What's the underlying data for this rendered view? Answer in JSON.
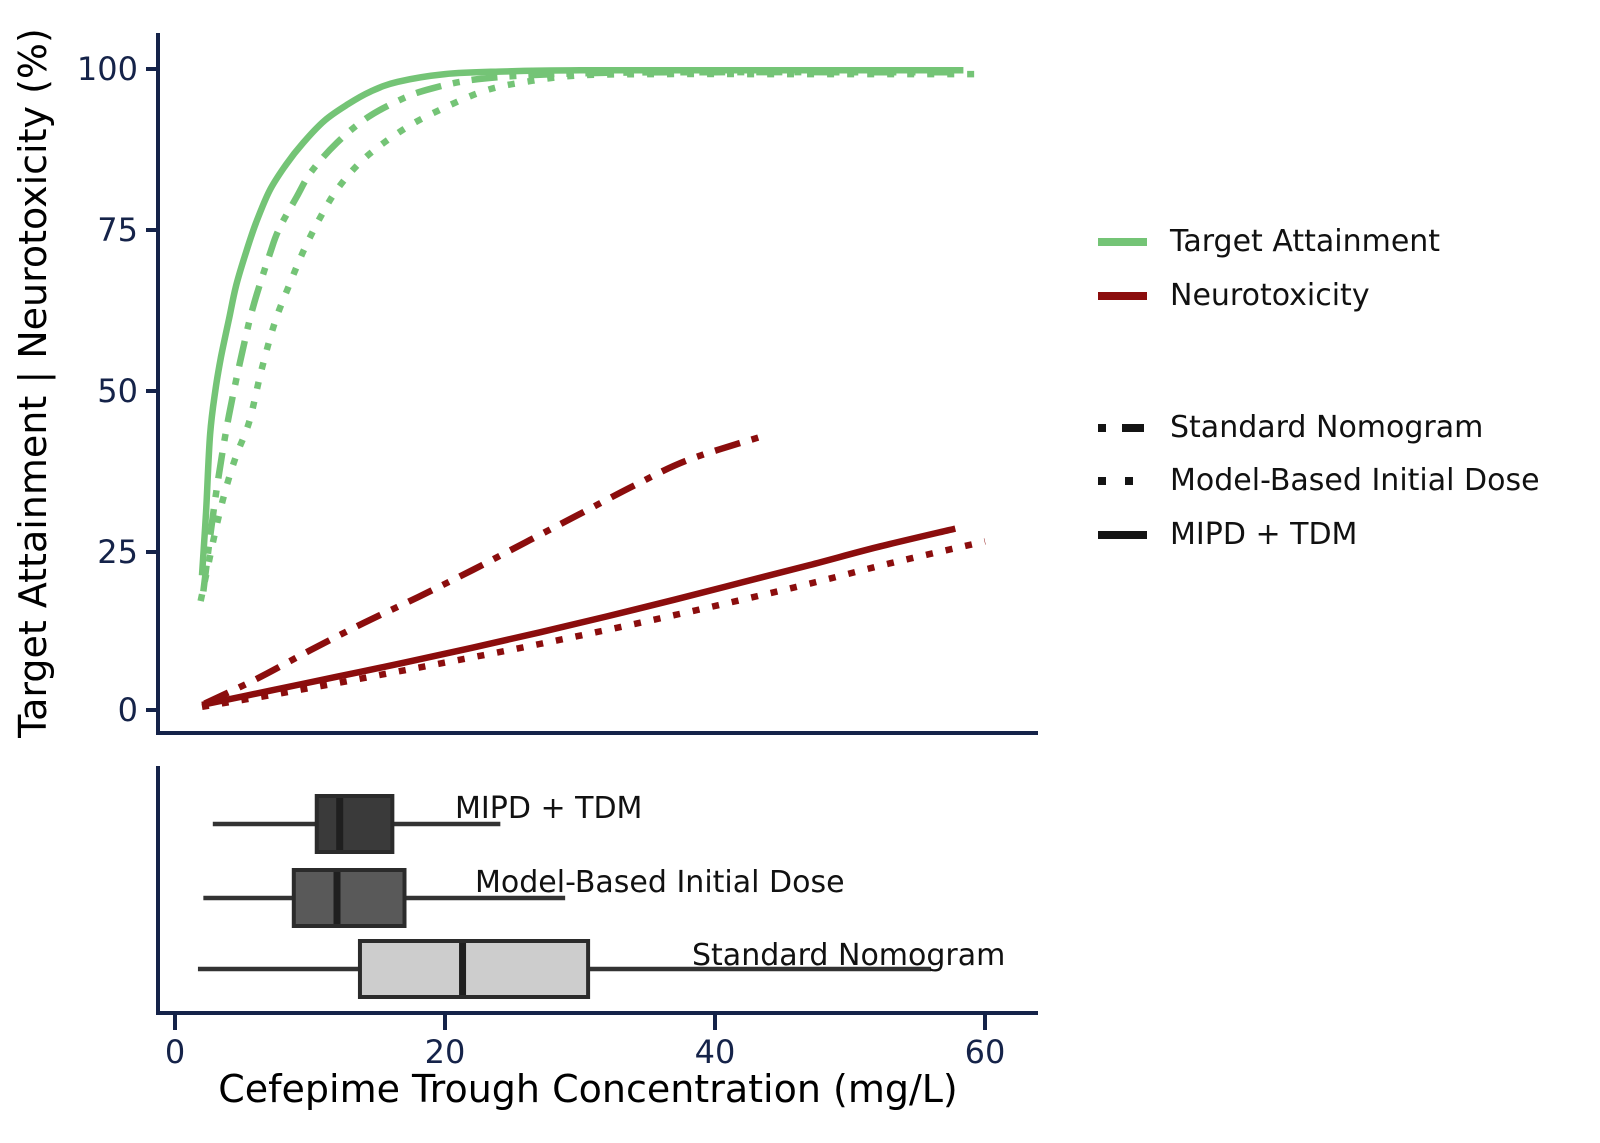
{
  "figure": {
    "xlabel": "Cefepime Trough Concentration (mg/L)",
    "ylabel": "Target Attainment | Neurotoxicity (%)",
    "background": "#ffffff",
    "axis_color": "#152349",
    "green": "#74c476",
    "darkred": "#8b0d0d"
  },
  "axes": {
    "x_tick_labels": [
      "0",
      "20",
      "40",
      "60"
    ],
    "x_tick_values": [
      0,
      20,
      40,
      60
    ],
    "y_tick_labels": [
      "100",
      "75",
      "50",
      "25",
      "0"
    ],
    "y_tick_values": [
      100,
      75,
      50,
      25,
      0
    ],
    "x_range": [
      0,
      62
    ],
    "y_range": [
      0,
      100
    ]
  },
  "legend": {
    "outcomes": [
      {
        "label": "Target Attainment",
        "color": "#74c476",
        "style": "solid"
      },
      {
        "label": "Neurotoxicity",
        "color": "#8b0d0d",
        "style": "solid"
      }
    ],
    "strategies": [
      {
        "label": "Standard Nomogram",
        "color": "#141414",
        "style": "dashdot"
      },
      {
        "label": "Model-Based Initial Dose",
        "color": "#141414",
        "style": "dotted"
      },
      {
        "label": "MIPD + TDM",
        "color": "#141414",
        "style": "solid"
      }
    ]
  },
  "chart_data": [
    {
      "type": "line",
      "title": "",
      "xlabel": "Cefepime Trough Concentration (mg/L)",
      "ylabel": "Target Attainment | Neurotoxicity (%)",
      "xlim": [
        0,
        62
      ],
      "ylim": [
        0,
        100
      ],
      "grid": false,
      "legend_position": "right",
      "series": [
        {
          "outcome": "Target Attainment",
          "strategy": "MIPD + TDM",
          "color": "#74c476",
          "style": "solid",
          "points": [
            [
              2,
              21
            ],
            [
              2.3,
              31
            ],
            [
              2.6,
              43
            ],
            [
              3,
              50
            ],
            [
              3.4,
              55
            ],
            [
              4,
              61
            ],
            [
              4.5,
              66
            ],
            [
              5.2,
              71
            ],
            [
              6,
              76
            ],
            [
              7,
              81
            ],
            [
              8.2,
              85
            ],
            [
              9.5,
              88.5
            ],
            [
              11.1,
              92
            ],
            [
              12.8,
              94.5
            ],
            [
              14.5,
              96.5
            ],
            [
              16.5,
              98
            ],
            [
              20,
              99.2
            ],
            [
              24,
              99.6
            ],
            [
              30,
              99.8
            ],
            [
              40,
              99.8
            ],
            [
              50,
              99.8
            ],
            [
              58.4,
              99.8
            ]
          ]
        },
        {
          "outcome": "Target Attainment",
          "strategy": "Standard Nomogram",
          "color": "#74c476",
          "style": "dashdot",
          "points": [
            [
              2.1,
              18.5
            ],
            [
              2.6,
              27
            ],
            [
              3.2,
              36
            ],
            [
              4,
              46
            ],
            [
              5,
              56
            ],
            [
              5.8,
              63
            ],
            [
              7,
              71
            ],
            [
              7.7,
              75
            ],
            [
              9,
              80
            ],
            [
              10.1,
              84
            ],
            [
              12,
              88.5
            ],
            [
              14.3,
              92.5
            ],
            [
              17,
              95.5
            ],
            [
              19.1,
              97
            ],
            [
              22,
              98.3
            ],
            [
              26,
              99
            ],
            [
              32,
              99.4
            ],
            [
              40,
              99.5
            ],
            [
              50,
              99.5
            ],
            [
              57.5,
              99.5
            ]
          ]
        },
        {
          "outcome": "Target Attainment",
          "strategy": "Model-Based Initial Dose",
          "color": "#74c476",
          "style": "dotted",
          "points": [
            [
              1.9,
              17
            ],
            [
              2.4,
              22
            ],
            [
              3,
              28
            ],
            [
              3.7,
              34
            ],
            [
              4.5,
              39.5
            ],
            [
              5.5,
              45
            ],
            [
              6.4,
              53
            ],
            [
              7.4,
              60.5
            ],
            [
              8.5,
              66.5
            ],
            [
              9.6,
              72
            ],
            [
              10.8,
              77
            ],
            [
              12.1,
              81.5
            ],
            [
              14,
              86
            ],
            [
              16.5,
              90
            ],
            [
              19,
              93
            ],
            [
              22.8,
              96.5
            ],
            [
              26,
              98
            ],
            [
              30,
              99
            ],
            [
              36,
              99.2
            ],
            [
              45,
              99.2
            ],
            [
              55,
              99.2
            ],
            [
              60,
              99.2
            ]
          ]
        },
        {
          "outcome": "Neurotoxicity",
          "strategy": "MIPD + TDM",
          "color": "#8b0d0d",
          "style": "solid",
          "points": [
            [
              2,
              0.8
            ],
            [
              7,
              3
            ],
            [
              12,
              5.2
            ],
            [
              17,
              7.4
            ],
            [
              22,
              9.7
            ],
            [
              27,
              12.1
            ],
            [
              32,
              14.6
            ],
            [
              37,
              17.2
            ],
            [
              42,
              19.9
            ],
            [
              47,
              22.6
            ],
            [
              52,
              25.4
            ],
            [
              57.8,
              28.3
            ]
          ]
        },
        {
          "outcome": "Neurotoxicity",
          "strategy": "Standard Nomogram",
          "color": "#8b0d0d",
          "style": "dashdot",
          "points": [
            [
              2.2,
              1
            ],
            [
              6,
              4.8
            ],
            [
              10,
              9.3
            ],
            [
              14,
              13.6
            ],
            [
              18,
              17.6
            ],
            [
              22,
              21.8
            ],
            [
              26,
              26.2
            ],
            [
              30,
              30.6
            ],
            [
              34,
              35
            ],
            [
              38,
              39
            ],
            [
              43.5,
              42.7
            ]
          ]
        },
        {
          "outcome": "Neurotoxicity",
          "strategy": "Model-Based Initial Dose",
          "color": "#8b0d0d",
          "style": "dotted",
          "points": [
            [
              2,
              0.5
            ],
            [
              7,
              2.3
            ],
            [
              12,
              4.2
            ],
            [
              17,
              6.2
            ],
            [
              22,
              8.2
            ],
            [
              27,
              10.3
            ],
            [
              32,
              12.5
            ],
            [
              37,
              14.8
            ],
            [
              42,
              17.2
            ],
            [
              47,
              19.7
            ],
            [
              53,
              22.9
            ],
            [
              60,
              26.3
            ]
          ]
        }
      ]
    },
    {
      "type": "box",
      "orientation": "horizontal",
      "xlabel": "Cefepime Trough Concentration (mg/L)",
      "xlim": [
        0,
        62
      ],
      "x_ticks": [
        0,
        20,
        40,
        60
      ],
      "groups": [
        {
          "label": "MIPD + TDM",
          "whisker_low": 2.8,
          "q1": 10.5,
          "median": 12.2,
          "q3": 16.1,
          "whisker_high": 24.1,
          "fill": "#3a3a3a"
        },
        {
          "label": "Model-Based Initial Dose",
          "whisker_low": 2.1,
          "q1": 8.8,
          "median": 12.0,
          "q3": 17.0,
          "whisker_high": 28.9,
          "fill": "#595959"
        },
        {
          "label": "Standard Nomogram",
          "whisker_low": 1.7,
          "q1": 13.7,
          "median": 21.3,
          "q3": 30.6,
          "whisker_high": 56.0,
          "fill": "#cdcdcd"
        }
      ],
      "box_border_color": "#2b2b2b",
      "median_color": "#1f1f1f",
      "whisker_color": "#333333"
    }
  ]
}
